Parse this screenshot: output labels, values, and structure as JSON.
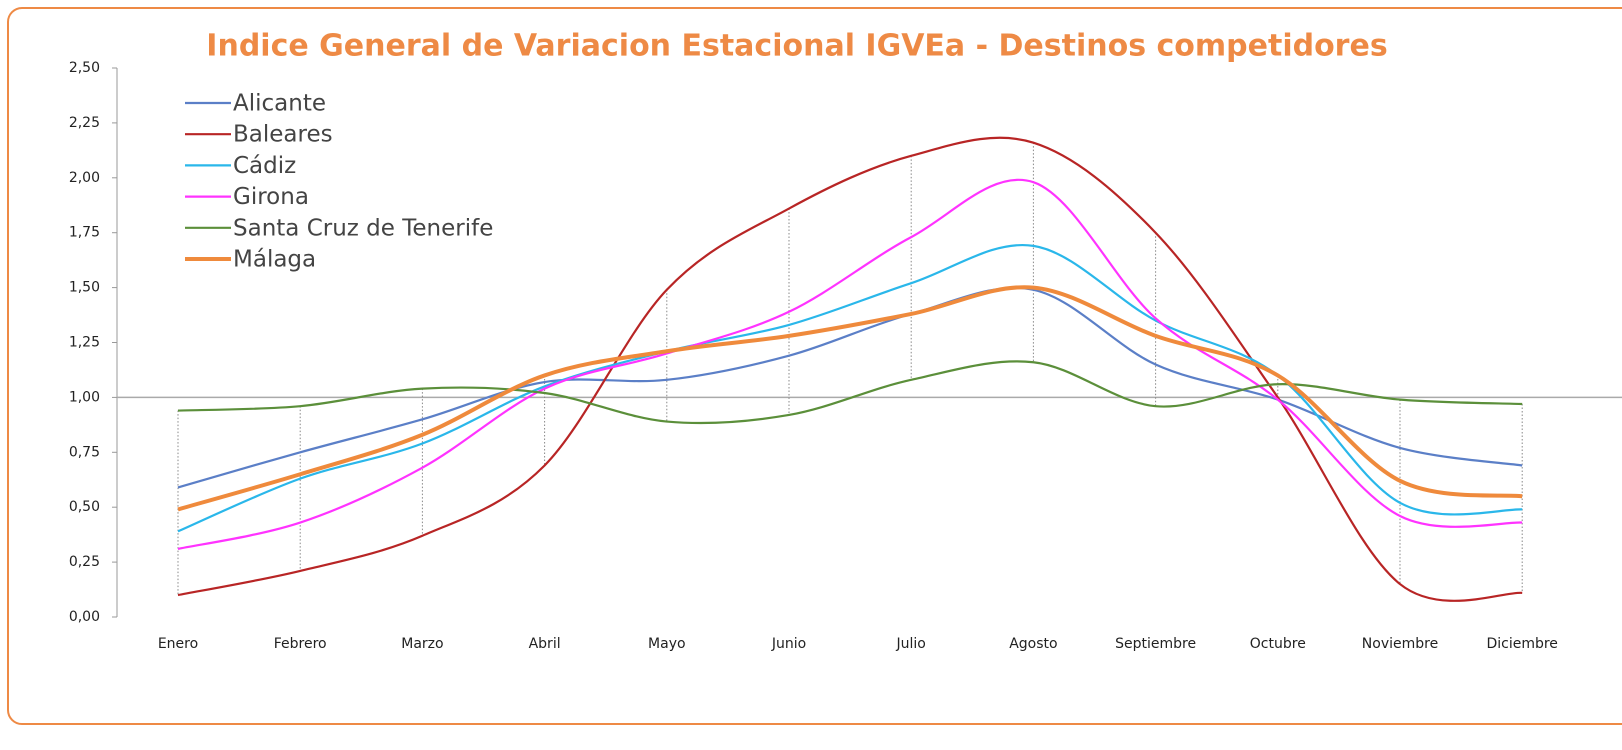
{
  "chart_data": {
    "type": "line",
    "title": "Indice General de Variacion Estacional IGVEa - Destinos competidores",
    "categories": [
      "Enero",
      "Febrero",
      "Marzo",
      "Abril",
      "Mayo",
      "Junio",
      "Julio",
      "Agosto",
      "Septiembre",
      "Octubre",
      "Noviembre",
      "Diciembre"
    ],
    "series": [
      {
        "name": "Alicante",
        "color": "#5b7fc7",
        "values": [
          0.59,
          0.75,
          0.9,
          1.07,
          1.08,
          1.19,
          1.38,
          1.49,
          1.15,
          0.99,
          0.77,
          0.69
        ]
      },
      {
        "name": "Baleares",
        "color": "#b82525",
        "values": [
          0.1,
          0.21,
          0.37,
          0.69,
          1.49,
          1.86,
          2.1,
          2.16,
          1.75,
          1.0,
          0.15,
          0.11
        ]
      },
      {
        "name": "Cádiz",
        "color": "#2ab7ea",
        "values": [
          0.39,
          0.63,
          0.79,
          1.05,
          1.21,
          1.33,
          1.52,
          1.69,
          1.35,
          1.1,
          0.52,
          0.49
        ]
      },
      {
        "name": "Girona",
        "color": "#ff33ff",
        "values": [
          0.31,
          0.43,
          0.68,
          1.04,
          1.2,
          1.39,
          1.73,
          1.98,
          1.36,
          0.99,
          0.46,
          0.43
        ]
      },
      {
        "name": "Santa Cruz de Tenerife",
        "color": "#5b8f3a",
        "values": [
          0.94,
          0.96,
          1.04,
          1.02,
          0.89,
          0.92,
          1.08,
          1.16,
          0.96,
          1.06,
          0.99,
          0.97
        ]
      },
      {
        "name": "Málaga",
        "color": "#ef8a3c",
        "values": [
          0.49,
          0.65,
          0.83,
          1.1,
          1.21,
          1.28,
          1.38,
          1.5,
          1.28,
          1.1,
          0.62,
          0.55
        ]
      }
    ],
    "ylim": [
      0,
      2.5
    ],
    "yticks": [
      {
        "value": 0,
        "label": "0,00"
      },
      {
        "value": 0.25,
        "label": "0,25"
      },
      {
        "value": 0.5,
        "label": "0,50"
      },
      {
        "value": 0.75,
        "label": "0,75"
      },
      {
        "value": 1,
        "label": "1,00"
      },
      {
        "value": 1.25,
        "label": "1,25"
      },
      {
        "value": 1.5,
        "label": "1,50"
      },
      {
        "value": 1.75,
        "label": "1,75"
      },
      {
        "value": 2,
        "label": "2,00"
      },
      {
        "value": 2.25,
        "label": "2,25"
      },
      {
        "value": 2.5,
        "label": "2,50"
      }
    ],
    "reference_line": 1,
    "high_low_lines": true,
    "smooth": true,
    "legend": "top-left"
  }
}
